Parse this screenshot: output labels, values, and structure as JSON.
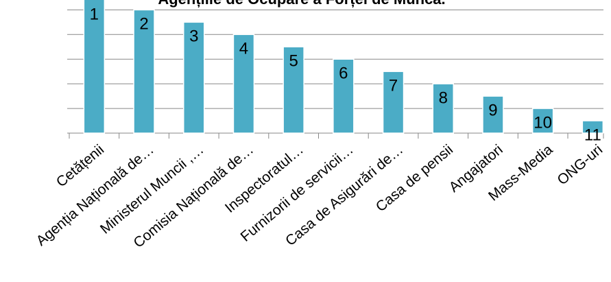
{
  "chart_data": {
    "type": "bar",
    "title": "Agențiile de Ocupare a Forței de Muncă.",
    "categories": [
      "Cetățenii",
      "Agenția Națională de…",
      "Ministerul Muncii ,…",
      "Comisia Națională de…",
      "Inspectoratul…",
      "Furnizorii de servicii…",
      "Casa de Asigurări de…",
      "Casa de pensii",
      "Angajatori",
      "Mass-Media",
      "ONG-uri"
    ],
    "values": [
      11,
      10,
      9,
      8,
      7,
      6,
      5,
      4,
      3,
      2,
      1
    ],
    "value_labels": [
      "1",
      "2",
      "3",
      "4",
      "5",
      "6",
      "7",
      "8",
      "9",
      "10",
      "11"
    ],
    "color": "#4bacc6",
    "ylim": [
      0,
      10.8
    ],
    "yticks": [
      0,
      2,
      4,
      6,
      8,
      10
    ],
    "grid": true
  }
}
